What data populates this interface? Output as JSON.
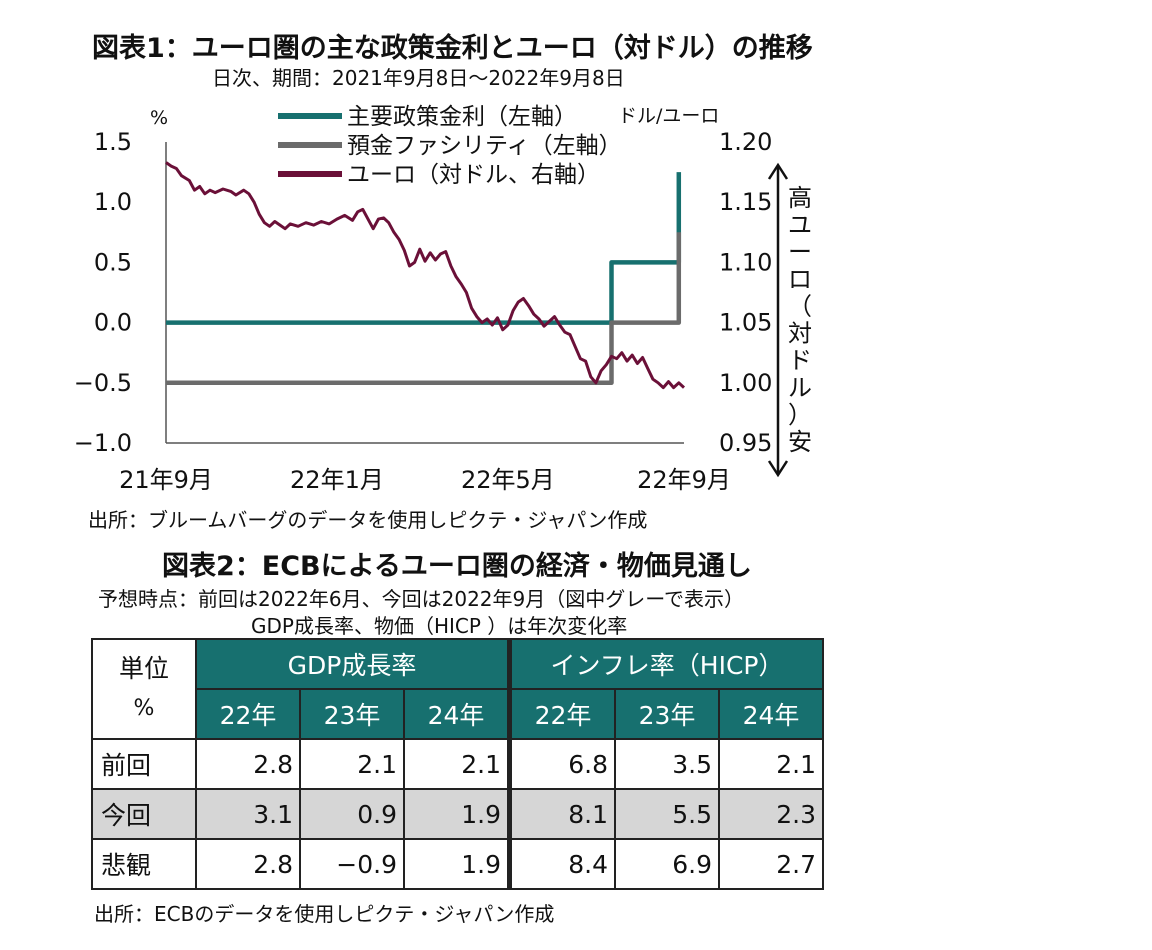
{
  "figure1": {
    "title": "図表1：ユーロ圏の主な政策金利とユーロ（対ドル）の推移",
    "subtitle": "日次、期間：2021年9月8日～2022年9月8日",
    "source": "出所：ブルームバーグのデータを使用しピクテ・ジャパン作成"
  },
  "chart_data": {
    "type": "line",
    "left_axis": {
      "unit_label": "%",
      "ticks": [
        "1.5",
        "1.0",
        "0.5",
        "0.0",
        "−0.5",
        "−1.0"
      ],
      "range": [
        -1.0,
        1.5
      ]
    },
    "right_axis": {
      "unit_label": "ドル/ユーロ",
      "ticks": [
        "1.20",
        "1.15",
        "1.10",
        "1.05",
        "1.00",
        "0.95"
      ],
      "range": [
        0.95,
        1.2
      ],
      "side_label_chars": [
        "高",
        "ユ",
        "ー",
        "ロ",
        "（",
        "対",
        "ド",
        "ル",
        "）",
        "安"
      ]
    },
    "x_ticks": [
      "21年9月",
      "22年1月",
      "22年5月",
      "22年9月"
    ],
    "series": [
      {
        "name": "主要政策金利（左軸）",
        "axis": "left",
        "color": "#17706f",
        "points": [
          [
            0.0,
            0.0
          ],
          [
            0.86,
            0.0
          ],
          [
            0.86,
            0.5
          ],
          [
            0.99,
            0.5
          ],
          [
            0.99,
            1.25
          ]
        ]
      },
      {
        "name": "預金ファシリティ（左軸）",
        "axis": "left",
        "color": "#6b6b6b",
        "points": [
          [
            0.0,
            -0.5
          ],
          [
            0.86,
            -0.5
          ],
          [
            0.86,
            0.0
          ],
          [
            0.99,
            0.0
          ],
          [
            0.99,
            0.75
          ]
        ]
      },
      {
        "name": "ユーロ（対ドル、右軸）",
        "axis": "right",
        "color": "#6b1038",
        "points": [
          [
            0.0,
            1.183
          ],
          [
            0.01,
            1.18
          ],
          [
            0.02,
            1.178
          ],
          [
            0.03,
            1.172
          ],
          [
            0.045,
            1.168
          ],
          [
            0.055,
            1.16
          ],
          [
            0.065,
            1.163
          ],
          [
            0.075,
            1.157
          ],
          [
            0.085,
            1.16
          ],
          [
            0.095,
            1.158
          ],
          [
            0.11,
            1.161
          ],
          [
            0.125,
            1.159
          ],
          [
            0.135,
            1.156
          ],
          [
            0.15,
            1.16
          ],
          [
            0.16,
            1.157
          ],
          [
            0.17,
            1.15
          ],
          [
            0.18,
            1.14
          ],
          [
            0.19,
            1.133
          ],
          [
            0.2,
            1.13
          ],
          [
            0.21,
            1.134
          ],
          [
            0.22,
            1.131
          ],
          [
            0.23,
            1.128
          ],
          [
            0.24,
            1.132
          ],
          [
            0.255,
            1.13
          ],
          [
            0.27,
            1.133
          ],
          [
            0.285,
            1.131
          ],
          [
            0.3,
            1.134
          ],
          [
            0.315,
            1.132
          ],
          [
            0.33,
            1.136
          ],
          [
            0.345,
            1.139
          ],
          [
            0.36,
            1.135
          ],
          [
            0.37,
            1.142
          ],
          [
            0.38,
            1.144
          ],
          [
            0.39,
            1.136
          ],
          [
            0.4,
            1.128
          ],
          [
            0.41,
            1.136
          ],
          [
            0.42,
            1.137
          ],
          [
            0.43,
            1.133
          ],
          [
            0.44,
            1.125
          ],
          [
            0.45,
            1.119
          ],
          [
            0.46,
            1.11
          ],
          [
            0.47,
            1.097
          ],
          [
            0.48,
            1.1
          ],
          [
            0.49,
            1.111
          ],
          [
            0.5,
            1.101
          ],
          [
            0.51,
            1.108
          ],
          [
            0.52,
            1.102
          ],
          [
            0.53,
            1.107
          ],
          [
            0.54,
            1.109
          ],
          [
            0.55,
            1.097
          ],
          [
            0.56,
            1.088
          ],
          [
            0.57,
            1.082
          ],
          [
            0.58,
            1.075
          ],
          [
            0.59,
            1.062
          ],
          [
            0.6,
            1.055
          ],
          [
            0.61,
            1.05
          ],
          [
            0.62,
            1.053
          ],
          [
            0.63,
            1.048
          ],
          [
            0.64,
            1.054
          ],
          [
            0.65,
            1.044
          ],
          [
            0.66,
            1.048
          ],
          [
            0.67,
            1.06
          ],
          [
            0.68,
            1.067
          ],
          [
            0.69,
            1.07
          ],
          [
            0.7,
            1.064
          ],
          [
            0.71,
            1.057
          ],
          [
            0.72,
            1.053
          ],
          [
            0.73,
            1.047
          ],
          [
            0.74,
            1.051
          ],
          [
            0.75,
            1.055
          ],
          [
            0.76,
            1.048
          ],
          [
            0.77,
            1.042
          ],
          [
            0.78,
            1.04
          ],
          [
            0.79,
            1.03
          ],
          [
            0.8,
            1.02
          ],
          [
            0.81,
            1.018
          ],
          [
            0.82,
            1.005
          ],
          [
            0.83,
            1.0
          ],
          [
            0.84,
            1.01
          ],
          [
            0.85,
            1.015
          ],
          [
            0.86,
            1.022
          ],
          [
            0.87,
            1.02
          ],
          [
            0.88,
            1.025
          ],
          [
            0.89,
            1.018
          ],
          [
            0.9,
            1.023
          ],
          [
            0.91,
            1.016
          ],
          [
            0.92,
            1.021
          ],
          [
            0.93,
            1.012
          ],
          [
            0.94,
            1.003
          ],
          [
            0.95,
            1.0
          ],
          [
            0.96,
            0.996
          ],
          [
            0.97,
            1.001
          ],
          [
            0.98,
            0.996
          ],
          [
            0.99,
            1.0
          ],
          [
            1.0,
            0.996
          ]
        ]
      }
    ]
  },
  "figure2": {
    "title": "図表2：ECBによるユーロ圏の経済・物価見通し",
    "note1": "予想時点：前回は2022年6月、今回は2022年9月（図中グレーで表示）",
    "note2": "GDP成長率、物価（HICP ）は年次変化率",
    "unit_label": "単位",
    "unit_value": "%",
    "group_gdp": "GDP成長率",
    "group_infl": "インフレ率（HICP）",
    "years": [
      "22年",
      "23年",
      "24年",
      "22年",
      "23年",
      "24年"
    ],
    "rows": [
      {
        "label": "前回",
        "values": [
          "2.8",
          "2.1",
          "2.1",
          "6.8",
          "3.5",
          "2.1"
        ]
      },
      {
        "label": "今回",
        "values": [
          "3.1",
          "0.9",
          "1.9",
          "8.1",
          "5.5",
          "2.3"
        ]
      },
      {
        "label": "悲観",
        "values": [
          "2.8",
          "−0.9",
          "1.9",
          "8.4",
          "6.9",
          "2.7"
        ]
      }
    ],
    "source": "出所：ECBのデータを使用しピクテ・ジャパン作成"
  }
}
